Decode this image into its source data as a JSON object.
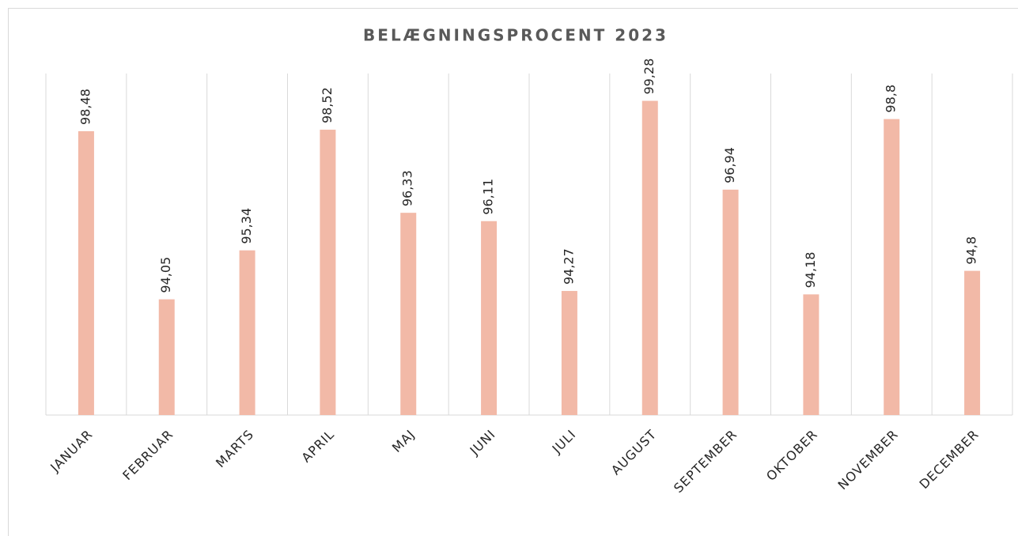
{
  "chart_data": {
    "type": "bar",
    "title": "BELÆGNINGSPROCENT 2023",
    "categories": [
      "JANUAR",
      "FEBRUAR",
      "MARTS",
      "APRIL",
      "MAJ",
      "JUNI",
      "JULI",
      "AUGUST",
      "SEPTEMBER",
      "OKTOBER",
      "NOVEMBER",
      "DECEMBER"
    ],
    "values": [
      98.48,
      94.05,
      95.34,
      98.52,
      96.33,
      96.11,
      94.27,
      99.28,
      96.94,
      94.18,
      98.8,
      94.8
    ],
    "value_labels": [
      "98,48",
      "94,05",
      "95,34",
      "98,52",
      "96,33",
      "96,11",
      "94,27",
      "99,28",
      "96,94",
      "94,18",
      "98,8",
      "94,8"
    ],
    "color": "#f2b9a7",
    "ylim": [
      91,
      100
    ]
  }
}
